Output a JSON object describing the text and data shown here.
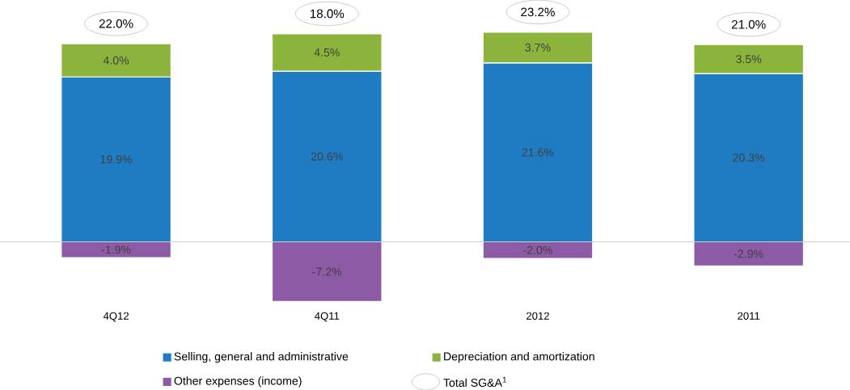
{
  "chart_data": {
    "type": "bar",
    "stacked": true,
    "categories": [
      "4Q12",
      "4Q11",
      "2012",
      "2011"
    ],
    "series": [
      {
        "name": "Selling, general and administrative",
        "color": "#1f7cc2",
        "values": [
          19.9,
          20.6,
          21.6,
          20.3
        ],
        "value_labels": [
          "19.9%",
          "20.6%",
          "21.6%",
          "20.3%"
        ]
      },
      {
        "name": "Depreciation and amortization",
        "color": "#8cb43c",
        "values": [
          4.0,
          4.5,
          3.7,
          3.5
        ],
        "value_labels": [
          "4.0%",
          "4.5%",
          "3.7%",
          "3.5%"
        ]
      },
      {
        "name": "Other expenses (income)",
        "color": "#8d5aa6",
        "values": [
          -1.9,
          -7.2,
          -2.0,
          -2.9
        ],
        "value_labels": [
          "-1.9%",
          "-7.2%",
          "-2.0%",
          "-2.9%"
        ]
      }
    ],
    "totals": [
      "22.0%",
      "18.0%",
      "23.2%",
      "21.0%"
    ],
    "annotations": [
      "Total SG&A$^{1}$"
    ],
    "legend": "bottom"
  }
}
